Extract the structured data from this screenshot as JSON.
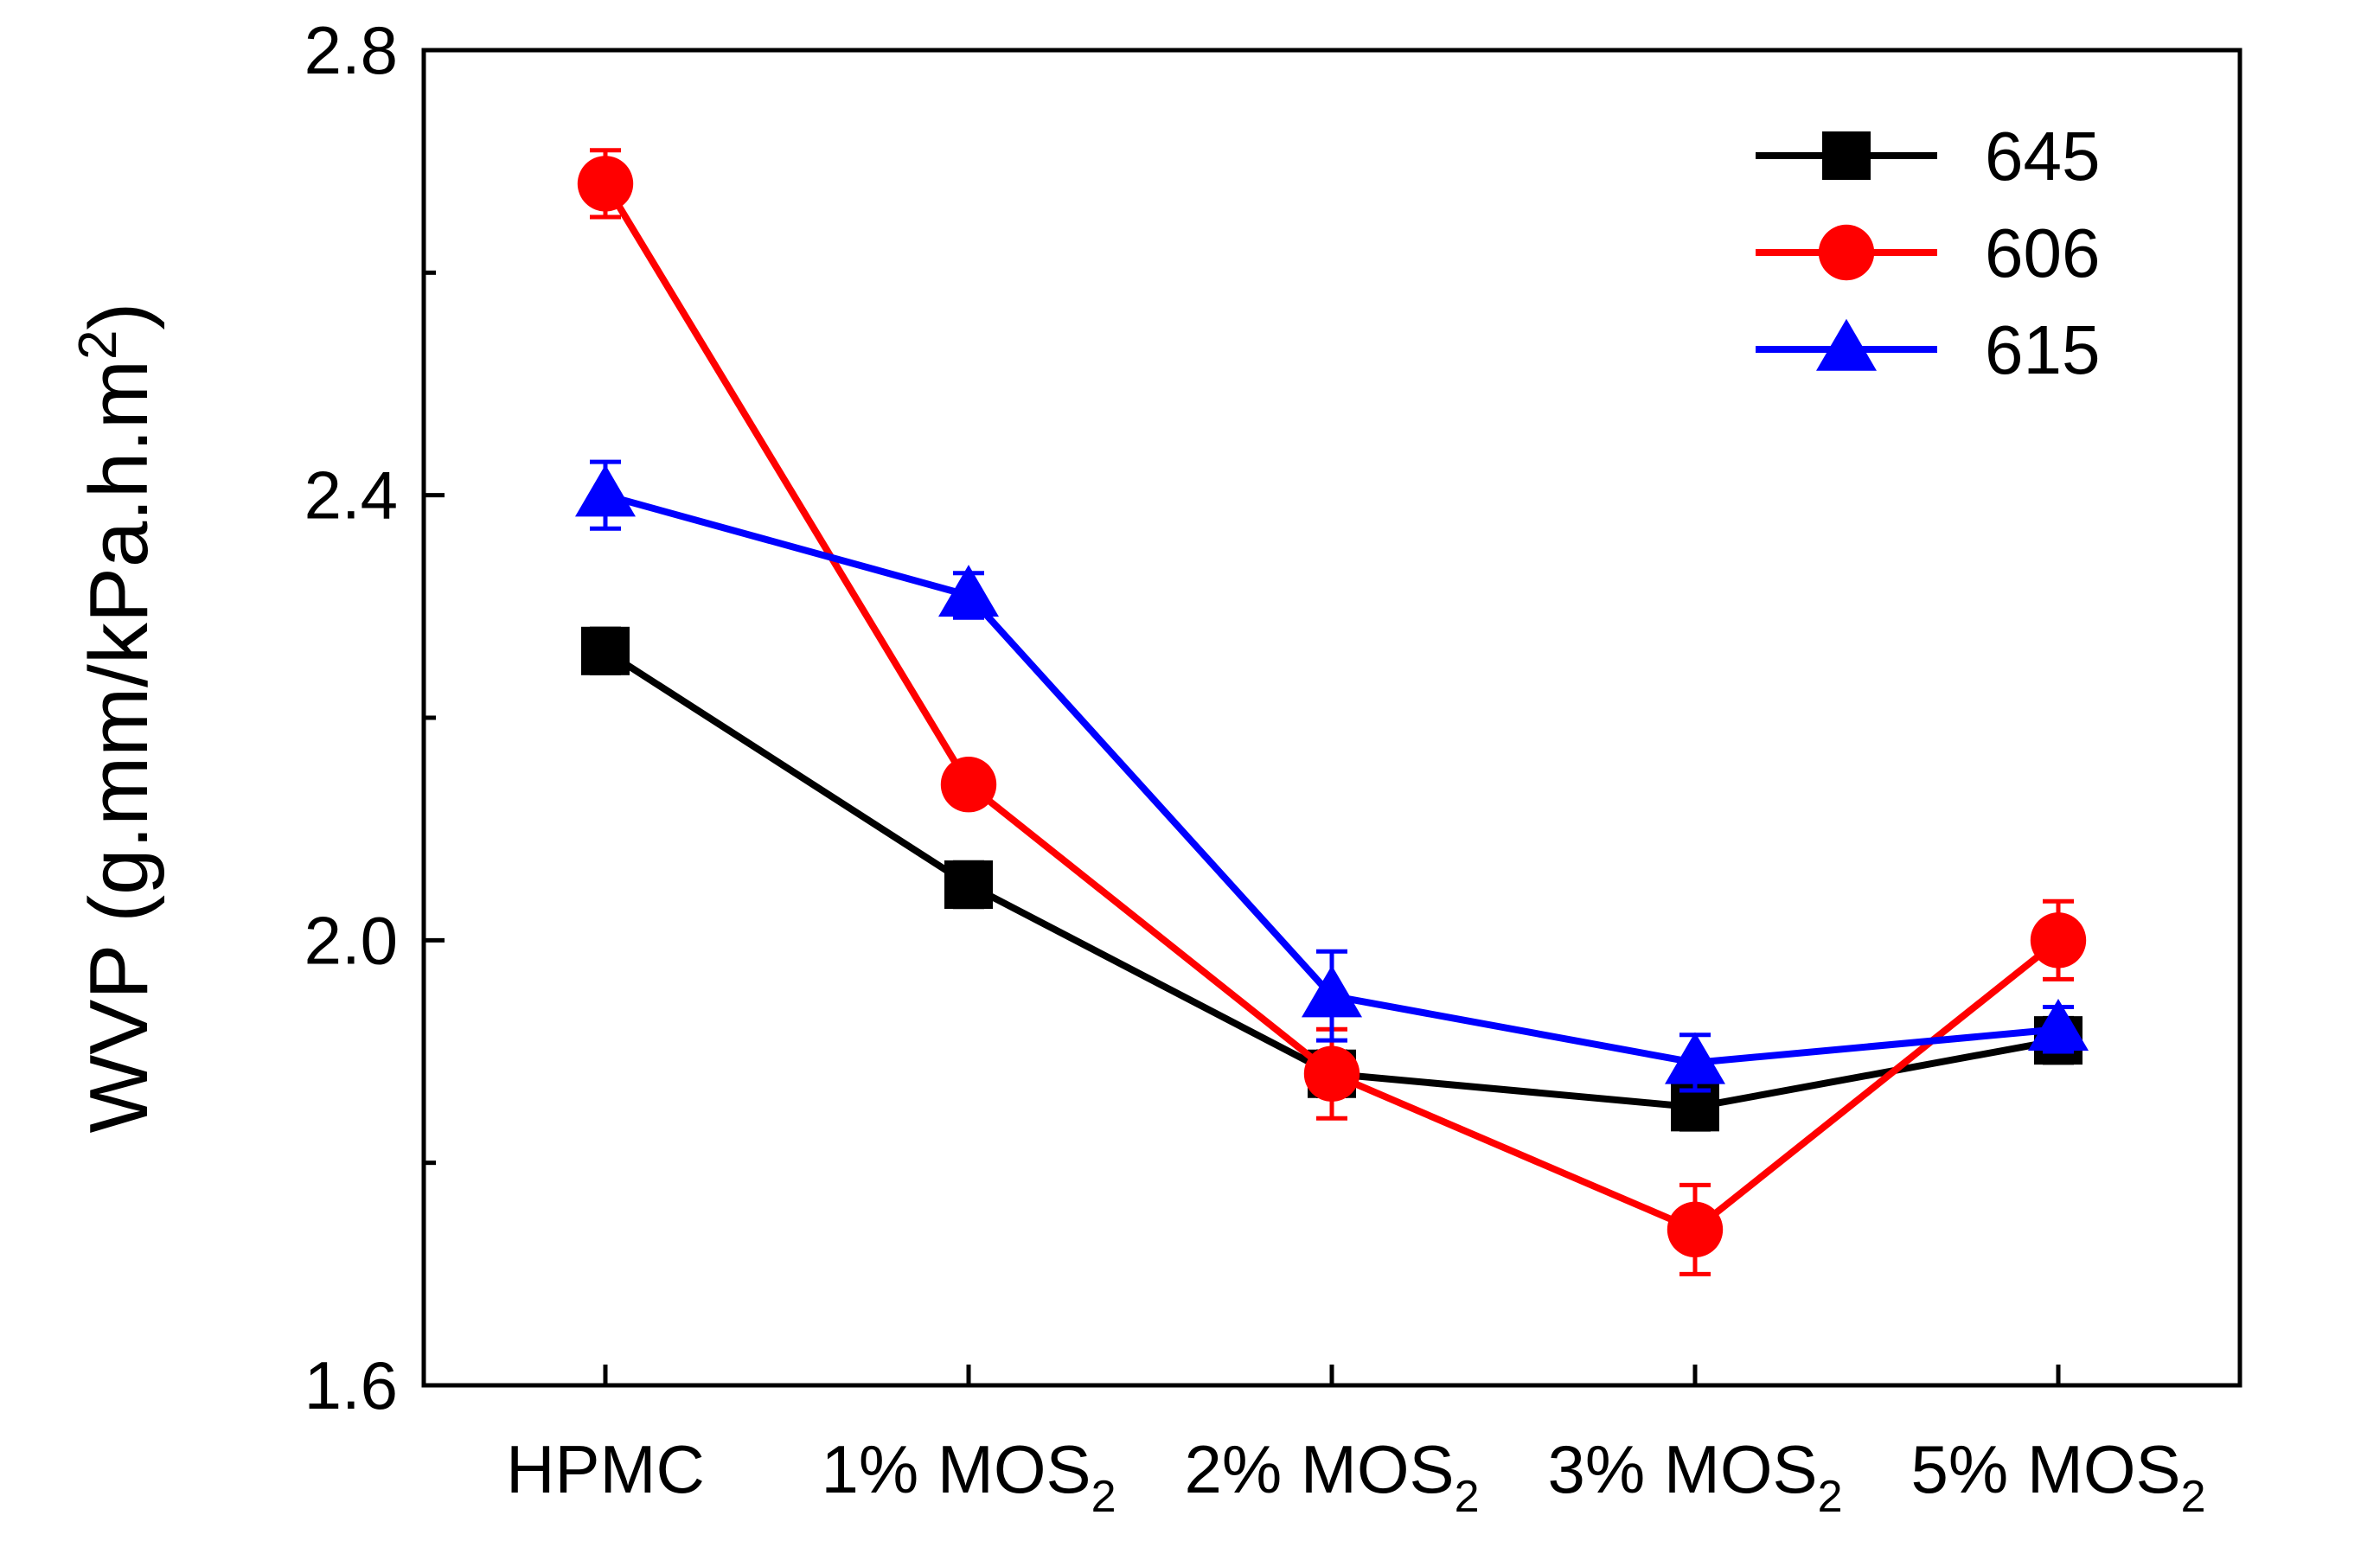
{
  "chart_data": {
    "type": "line",
    "title": "",
    "xlabel": "",
    "ylabel": "WVP (g.mm/kPa.h.m",
    "ylabel_superscript": "2",
    "ylabel_close": ")",
    "categories": [
      {
        "main": "HPMC",
        "sub": ""
      },
      {
        "main": "1% MOS",
        "sub": "2"
      },
      {
        "main": "2% MOS",
        "sub": "2"
      },
      {
        "main": "3% MOS",
        "sub": "2"
      },
      {
        "main": "5% MOS",
        "sub": "2"
      }
    ],
    "ylim": [
      1.6,
      2.8
    ],
    "yticks": [
      1.6,
      2.0,
      2.4,
      2.8
    ],
    "ytick_labels": [
      "1.6",
      "2.0",
      "2.4",
      "2.8"
    ],
    "yminor_ticks": [
      1.8,
      2.2,
      2.6
    ],
    "grid": false,
    "legend_position": "top-right",
    "series": [
      {
        "name": "645",
        "marker": "square",
        "color": "#000000",
        "values": [
          2.26,
          2.05,
          1.88,
          1.85,
          1.91
        ],
        "errors": [
          0.02,
          0.02,
          0.02,
          0.02,
          0.02
        ]
      },
      {
        "name": "606",
        "marker": "circle",
        "color": "#ff0000",
        "values": [
          2.68,
          2.14,
          1.88,
          1.74,
          2.0
        ],
        "errors": [
          0.03,
          0.01,
          0.04,
          0.04,
          0.035
        ]
      },
      {
        "name": "615",
        "marker": "triangle",
        "color": "#0000ff",
        "values": [
          2.4,
          2.31,
          1.95,
          1.89,
          1.92
        ],
        "errors": [
          0.03,
          0.02,
          0.04,
          0.025,
          0.02
        ]
      }
    ]
  }
}
